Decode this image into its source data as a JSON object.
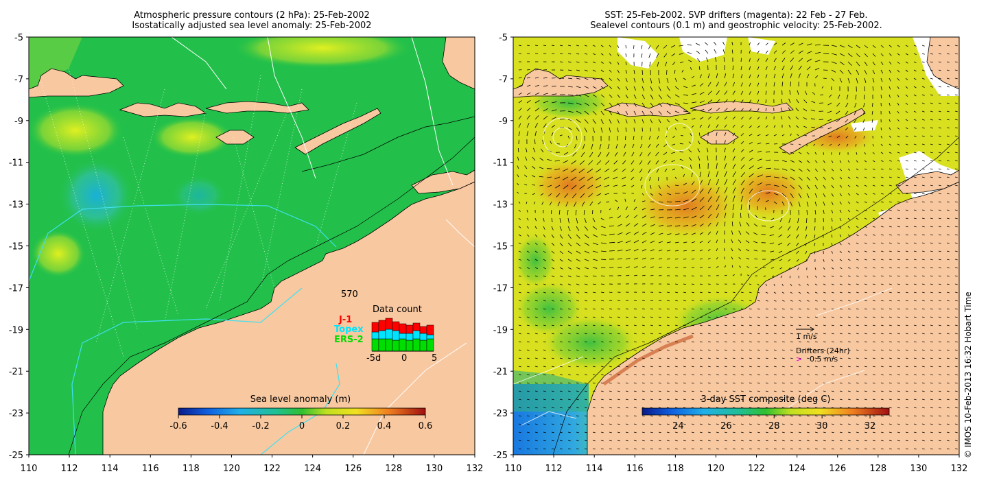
{
  "left_panel": {
    "title_line1": "Atmospheric pressure contours (2 hPa): 25-Feb-2002",
    "title_line2": "Isostatically adjusted sea level anomaly: 25-Feb-2002",
    "colorbar_label": "Sea level anomaly (m)",
    "colorbar_ticks": [
      "-0.6",
      "-0.4",
      "-0.2",
      "0",
      "0.2",
      "0.4",
      "0.6"
    ],
    "data_count": {
      "title": "Data count",
      "max_label": "570",
      "missions": [
        {
          "name": "J-1",
          "color": "#ff0000"
        },
        {
          "name": "Topex",
          "color": "#00e5ff"
        },
        {
          "name": "ERS-2",
          "color": "#00dd00"
        }
      ],
      "axis_labels": [
        "-5d",
        "0",
        "5"
      ],
      "bars": [
        {
          "ers": 18,
          "topex": 10,
          "j1": 14
        },
        {
          "ers": 18,
          "topex": 12,
          "j1": 15
        },
        {
          "ers": 18,
          "topex": 14,
          "j1": 16
        },
        {
          "ers": 16,
          "topex": 14,
          "j1": 13
        },
        {
          "ers": 18,
          "topex": 8,
          "j1": 14
        },
        {
          "ers": 16,
          "topex": 10,
          "j1": 12
        },
        {
          "ers": 18,
          "topex": 12,
          "j1": 11
        },
        {
          "ers": 16,
          "topex": 10,
          "j1": 10
        },
        {
          "ers": 18,
          "topex": 6,
          "j1": 14
        }
      ]
    }
  },
  "right_panel": {
    "title_line1": "SST: 25-Feb-2002. SVP drifters (magenta): 22 Feb - 27 Feb.",
    "title_line2": "Sealevel contours (0.1 m) and geostrophic velocity: 25-Feb-2002.",
    "colorbar_label": "3-day SST composite (deg C)",
    "colorbar_ticks": [
      "24",
      "26",
      "28",
      "30",
      "32"
    ],
    "velocity_scale_label": "1 m/s",
    "drifters_label": "Drifters (24hr)",
    "drifters_speed": "0.5 m/s",
    "drifter_marker": ">"
  },
  "axes": {
    "x_ticks": [
      "110",
      "112",
      "114",
      "116",
      "118",
      "120",
      "122",
      "124",
      "126",
      "128",
      "130",
      "132"
    ],
    "y_ticks": [
      "-5",
      "-7",
      "-9",
      "-11",
      "-13",
      "-15",
      "-17",
      "-19",
      "-21",
      "-23",
      "-25"
    ],
    "lon_range": [
      110,
      132
    ],
    "lat_range": [
      -25,
      -5
    ]
  },
  "copyright": "© IMOS 10-Feb-2013 16:32 Hobart Time",
  "colors": {
    "land": "#f8c8a0",
    "sla_green": "#22c04a",
    "sst_yellow": "#d8e020"
  }
}
